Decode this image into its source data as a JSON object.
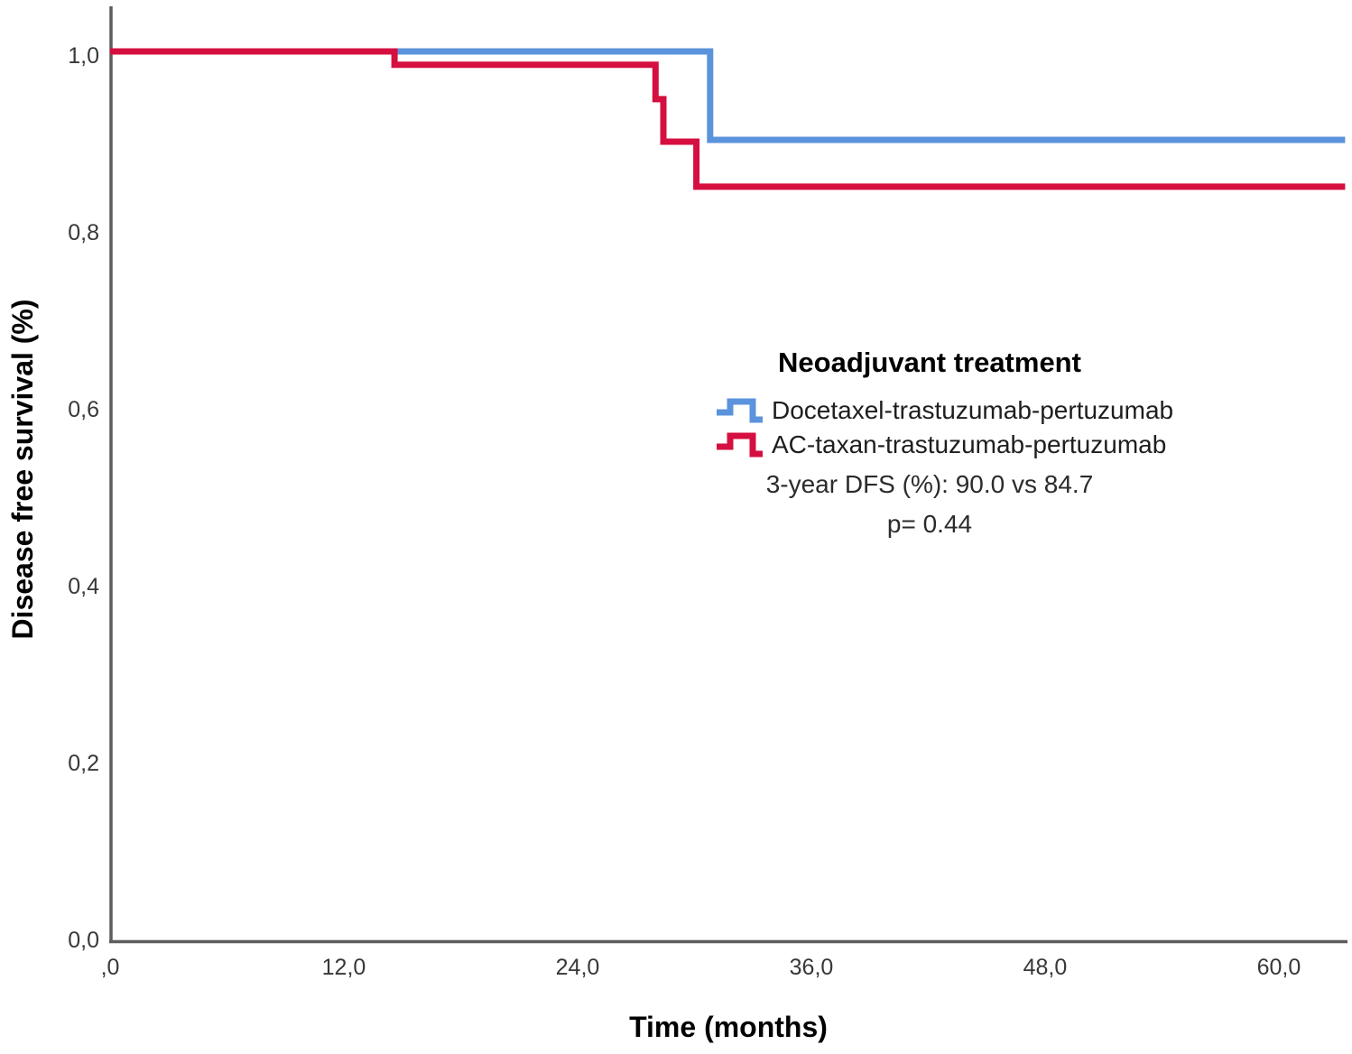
{
  "figure": {
    "y_axis_title": "Disease free survival (%)",
    "x_axis_title": "Time (months)"
  },
  "legend": {
    "title": "Neoadjuvant treatment",
    "entries": [
      {
        "label": "Docetaxel-trastuzumab-pertuzumab",
        "color": "#5B93DC"
      },
      {
        "label": "AC-taxan-trastuzumab-pertuzumab",
        "color": "#D50F3F"
      }
    ],
    "annotation_line1": "3-year DFS (%): 90.0 vs 84.7",
    "annotation_line2": "p= 0.44"
  },
  "chart_data": {
    "type": "line",
    "subtype": "kaplan-meier-step",
    "title": "",
    "xlabel": "Time (months)",
    "ylabel": "Disease free survival (%)",
    "xlim": [
      0,
      63.5
    ],
    "ylim": [
      0,
      1.05
    ],
    "grid": false,
    "legend_position": "center-right",
    "x_ticks": [
      {
        "t": 0,
        "label": ",0"
      },
      {
        "t": 12,
        "label": "12,0"
      },
      {
        "t": 24,
        "label": "24,0"
      },
      {
        "t": 36,
        "label": "36,0"
      },
      {
        "t": 48,
        "label": "48,0"
      },
      {
        "t": 60,
        "label": "60,0"
      }
    ],
    "y_ticks": [
      {
        "v": 0.0,
        "label": "0,0"
      },
      {
        "v": 0.2,
        "label": "0,2"
      },
      {
        "v": 0.4,
        "label": "0,4"
      },
      {
        "v": 0.6,
        "label": "0,6"
      },
      {
        "v": 0.8,
        "label": "0,8"
      },
      {
        "v": 1.0,
        "label": "1,0"
      }
    ],
    "series": [
      {
        "name": "Docetaxel-trastuzumab-pertuzumab",
        "color": "#5B93DC",
        "start_survival": 1.0,
        "drops": [
          {
            "t": 30.8,
            "s": 0.9
          }
        ],
        "end_t": 63.4,
        "three_year_dfs_pct": 90.0
      },
      {
        "name": "AC-taxan-trastuzumab-pertuzumab",
        "color": "#D50F3F",
        "start_survival": 1.0,
        "drops": [
          {
            "t": 14.6,
            "s": 0.985
          },
          {
            "t": 28.0,
            "s": 0.946
          },
          {
            "t": 28.4,
            "s": 0.898
          },
          {
            "t": 30.1,
            "s": 0.847
          }
        ],
        "end_t": 63.4,
        "three_year_dfs_pct": 84.7
      }
    ],
    "p_value": "0.44"
  }
}
